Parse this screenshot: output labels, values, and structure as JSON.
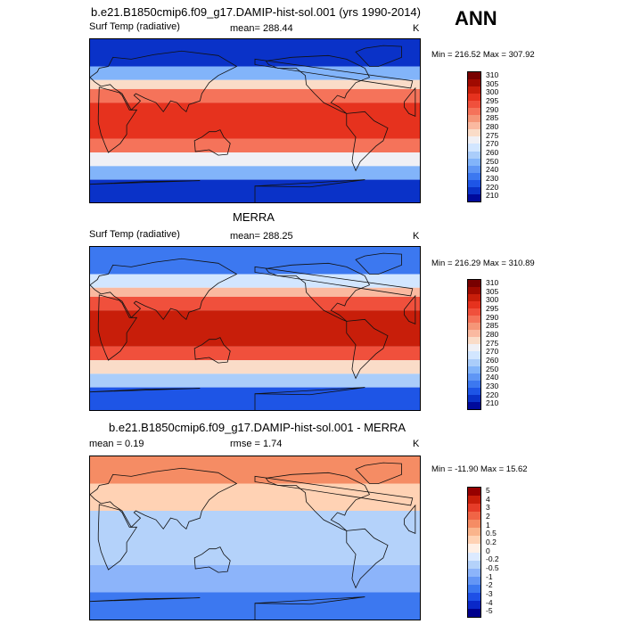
{
  "annotation": "ANN",
  "panels": [
    {
      "title": "b.e21.B1850cmip6.f09_g17.DAMIP-hist-sol.001 (yrs 1990-2014)",
      "left_label": "Surf Temp (radiative)",
      "center_label": "mean= 288.44",
      "units": "K",
      "minmax": "Min = 216.52 Max = 307.92",
      "palette": [
        "#000a9b",
        "#0a32c8",
        "#1e55e6",
        "#3c78f0",
        "#5f96f5",
        "#82b4fa",
        "#aacdfa",
        "#d2e6ff",
        "#f0f0f5",
        "#fadcc8",
        "#fab9a0",
        "#f59678",
        "#f5735a",
        "#f0503c",
        "#e6321e",
        "#c81e0a",
        "#a00a00",
        "#780000"
      ],
      "labels": [
        "310",
        "305",
        "300",
        "295",
        "290",
        "285",
        "280",
        "275",
        "270",
        "260",
        "250",
        "240",
        "230",
        "220",
        "210"
      ],
      "fields": [
        {
          "lat": [
            90,
            60
          ],
          "idx": 1
        },
        {
          "lat": [
            60,
            45
          ],
          "idx": 5
        },
        {
          "lat": [
            45,
            35
          ],
          "idx": 9
        },
        {
          "lat": [
            35,
            20
          ],
          "idx": 12
        },
        {
          "lat": [
            20,
            -20
          ],
          "idx": 14
        },
        {
          "lat": [
            -20,
            -35
          ],
          "idx": 12
        },
        {
          "lat": [
            -35,
            -50
          ],
          "idx": 8
        },
        {
          "lat": [
            -50,
            -65
          ],
          "idx": 5
        },
        {
          "lat": [
            -65,
            -90
          ],
          "idx": 1
        }
      ]
    },
    {
      "title": "MERRA",
      "left_label": "Surf Temp (radiative)",
      "center_label": "mean= 288.25",
      "units": "K",
      "minmax": "Min = 216.29 Max = 310.89",
      "palette": [
        "#000a9b",
        "#0a32c8",
        "#1e55e6",
        "#3c78f0",
        "#5f96f5",
        "#82b4fa",
        "#aacdfa",
        "#d2e6ff",
        "#f0f0f5",
        "#fadcc8",
        "#fab9a0",
        "#f59678",
        "#f5735a",
        "#f0503c",
        "#e6321e",
        "#c81e0a",
        "#a00a00",
        "#780000"
      ],
      "labels": [
        "310",
        "305",
        "300",
        "295",
        "290",
        "285",
        "280",
        "275",
        "270",
        "260",
        "250",
        "240",
        "230",
        "220",
        "210"
      ],
      "fields": [
        {
          "lat": [
            90,
            60
          ],
          "idx": 3
        },
        {
          "lat": [
            60,
            45
          ],
          "idx": 7
        },
        {
          "lat": [
            45,
            35
          ],
          "idx": 10
        },
        {
          "lat": [
            35,
            20
          ],
          "idx": 13
        },
        {
          "lat": [
            20,
            -20
          ],
          "idx": 15
        },
        {
          "lat": [
            -20,
            -35
          ],
          "idx": 13
        },
        {
          "lat": [
            -35,
            -50
          ],
          "idx": 9
        },
        {
          "lat": [
            -50,
            -65
          ],
          "idx": 6
        },
        {
          "lat": [
            -65,
            -90
          ],
          "idx": 2
        }
      ]
    },
    {
      "title": "b.e21.B1850cmip6.f09_g17.DAMIP-hist-sol.001 - MERRA",
      "left_label": "mean = 0.19",
      "center_label": "rmse = 1.74",
      "units": "K",
      "minmax": "Min = -11.90 Max = 15.62",
      "palette": [
        "#00008c",
        "#0a28c8",
        "#1e50e6",
        "#3c78f0",
        "#6496f5",
        "#8cb4fa",
        "#b4d2fa",
        "#dceaff",
        "#fff0e6",
        "#ffd2b4",
        "#fab48c",
        "#f58c64",
        "#f06446",
        "#e63c28",
        "#c81e0a",
        "#960000"
      ],
      "labels": [
        "5",
        "4",
        "3",
        "2",
        "1",
        "0.5",
        "0.2",
        "0",
        "-0.2",
        "-0.5",
        "-1",
        "-2",
        "-3",
        "-4",
        "-5"
      ],
      "fields": [
        {
          "lat": [
            90,
            60
          ],
          "idx": 11
        },
        {
          "lat": [
            60,
            30
          ],
          "idx": 9
        },
        {
          "lat": [
            30,
            -30
          ],
          "idx": 6
        },
        {
          "lat": [
            -30,
            -60
          ],
          "idx": 5
        },
        {
          "lat": [
            -60,
            -90
          ],
          "idx": 3
        }
      ]
    }
  ]
}
